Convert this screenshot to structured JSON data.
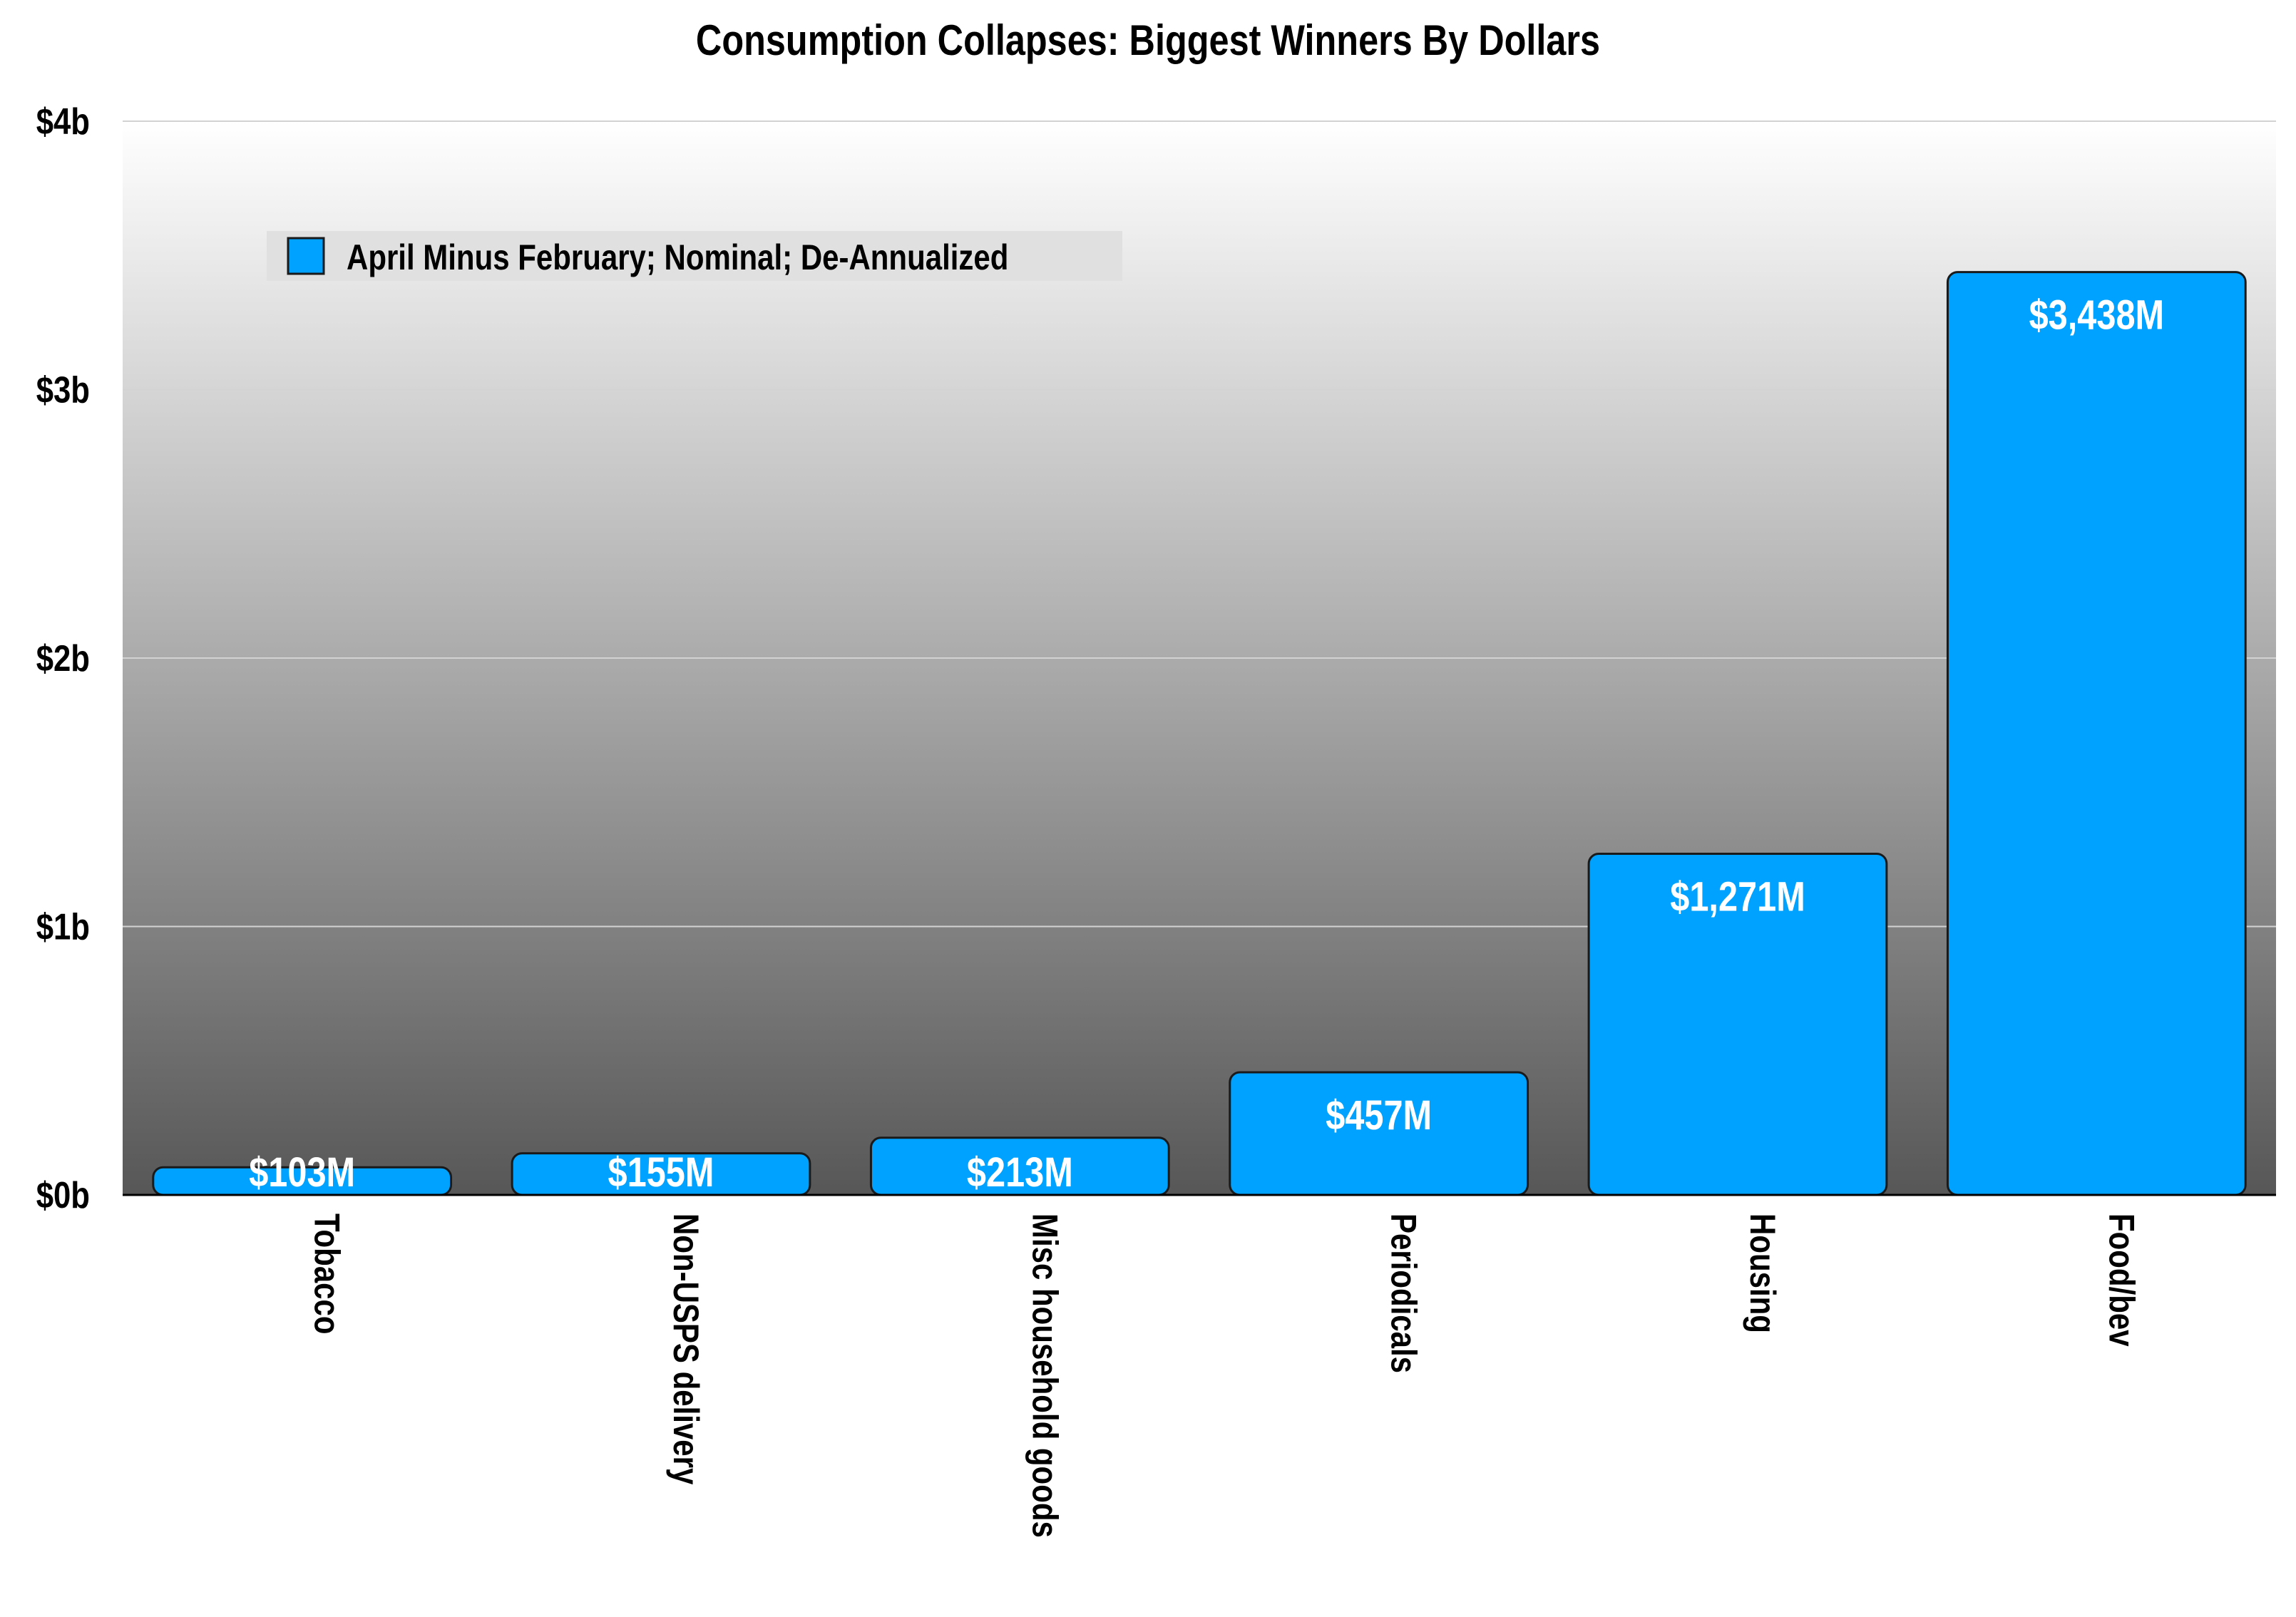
{
  "chart_data": {
    "type": "bar",
    "title": "Consumption Collapses: Biggest Winners By Dollars",
    "xlabel": "",
    "ylabel": "",
    "categories": [
      "Tobacco",
      "Non-USPS delivery",
      "Misc household goods",
      "Periodicals",
      "Housing",
      "Food/bev"
    ],
    "series": [
      {
        "name": "April Minus February; Nominal; De-Annualized",
        "values": [
          103,
          155,
          213,
          457,
          1271,
          3438
        ],
        "data_labels": [
          "$103M",
          "$155M",
          "$213M",
          "$457M",
          "$1,271M",
          "$3,438M"
        ]
      }
    ],
    "unit": "millions of dollars",
    "ylim": [
      0,
      4000
    ],
    "yticks": [
      0,
      1000,
      2000,
      3000,
      4000
    ],
    "ytick_labels": [
      "$0b",
      "$1b",
      "$2b",
      "$3b",
      "$4b"
    ],
    "grid": true,
    "legend_position": "top-left",
    "colors": {
      "bar": "#00a2ff",
      "bar_border": "#1a1a1a",
      "background_top": "#ffffff",
      "background_bottom": "#575757",
      "legend_box": "#e0e0e0",
      "data_label": "#ffffff"
    }
  }
}
